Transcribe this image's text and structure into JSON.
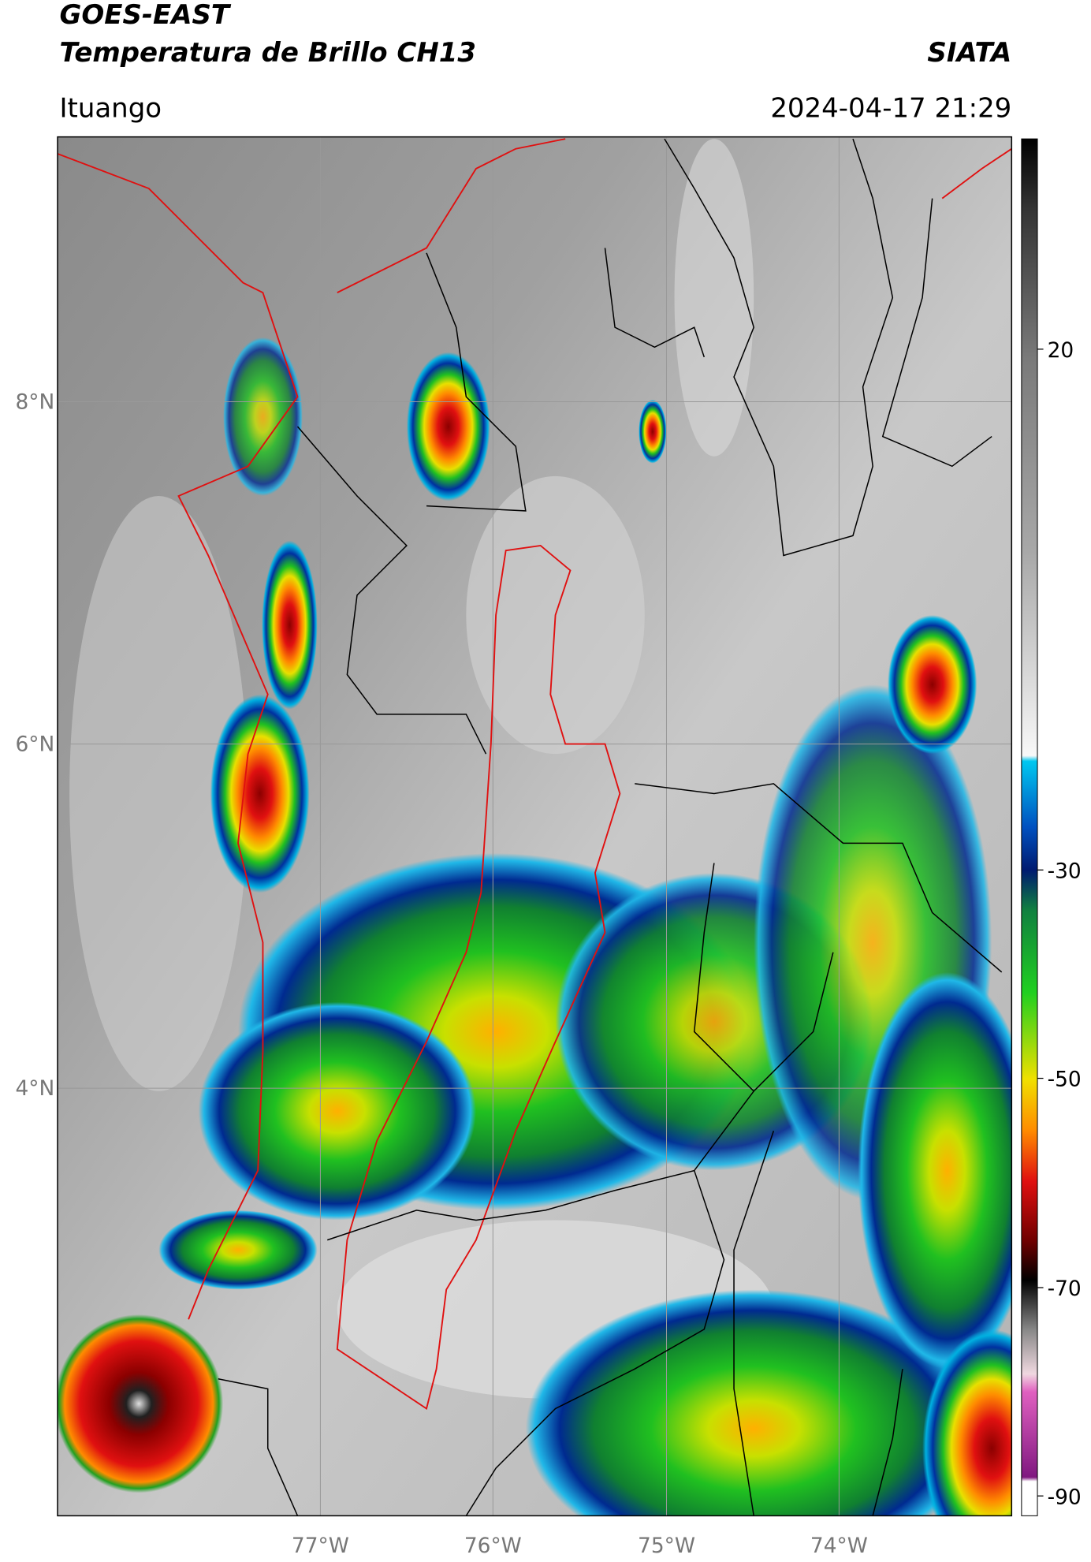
{
  "header": {
    "title_line1": "GOES-EAST",
    "title_line2": "Temperatura de Brillo CH13",
    "brand": "SIATA",
    "location": "Ituango",
    "datetime": "2024-04-17 21:29"
  },
  "map": {
    "latitude_labels": [
      "8°N",
      "6°N",
      "4°N"
    ],
    "longitude_labels": [
      "77°W",
      "76°W",
      "75°W",
      "74°W"
    ]
  },
  "colorbar": {
    "ticks": [
      20,
      -30,
      -50,
      -70,
      -90
    ]
  }
}
